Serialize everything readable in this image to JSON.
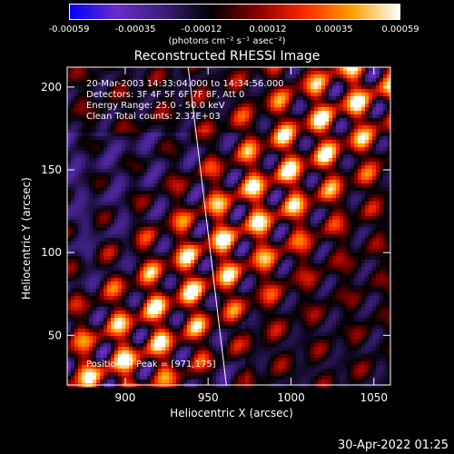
{
  "colorbar": {
    "ticks": [
      "-0.00059",
      "-0.00035",
      "-0.00012",
      "0.00012",
      "0.00035",
      "0.00059"
    ],
    "units": "(photons cm⁻² s⁻¹ asec⁻²)"
  },
  "chart_data": {
    "type": "heatmap",
    "title": "Reconstructed RHESSI Image",
    "xlabel": "Heliocentric X (arcsec)",
    "ylabel": "Heliocentric Y (arcsec)",
    "xlim": [
      865,
      1060
    ],
    "ylim": [
      20,
      212
    ],
    "xticks": [
      900,
      950,
      1000,
      1050
    ],
    "yticks": [
      50,
      100,
      150,
      200
    ],
    "colorscale": {
      "min": -0.00059,
      "max": 0.00059,
      "colors": [
        "#0000ff",
        "#6a2cc8",
        "#3a1e7a",
        "#000000",
        "#8a0000",
        "#ff2a00",
        "#ffa000",
        "#ffffff"
      ]
    },
    "limb_line": {
      "x": [
        938,
        961
      ],
      "y": [
        212,
        20
      ]
    },
    "peak": {
      "x": 971,
      "y": 175
    },
    "annotations": [
      "20-Mar-2003 14:33:04.000 to 14:34:56.000",
      "Detectors: 3F 4F 5F 6F 7F 8F, Att 0",
      "Energy Range: 25.0 - 50.0 keV",
      "Clean     Total counts: 2.37E+03"
    ],
    "peak_label": "Position of Peak = [971,175]"
  },
  "timestamp": "30-Apr-2022 01:25"
}
